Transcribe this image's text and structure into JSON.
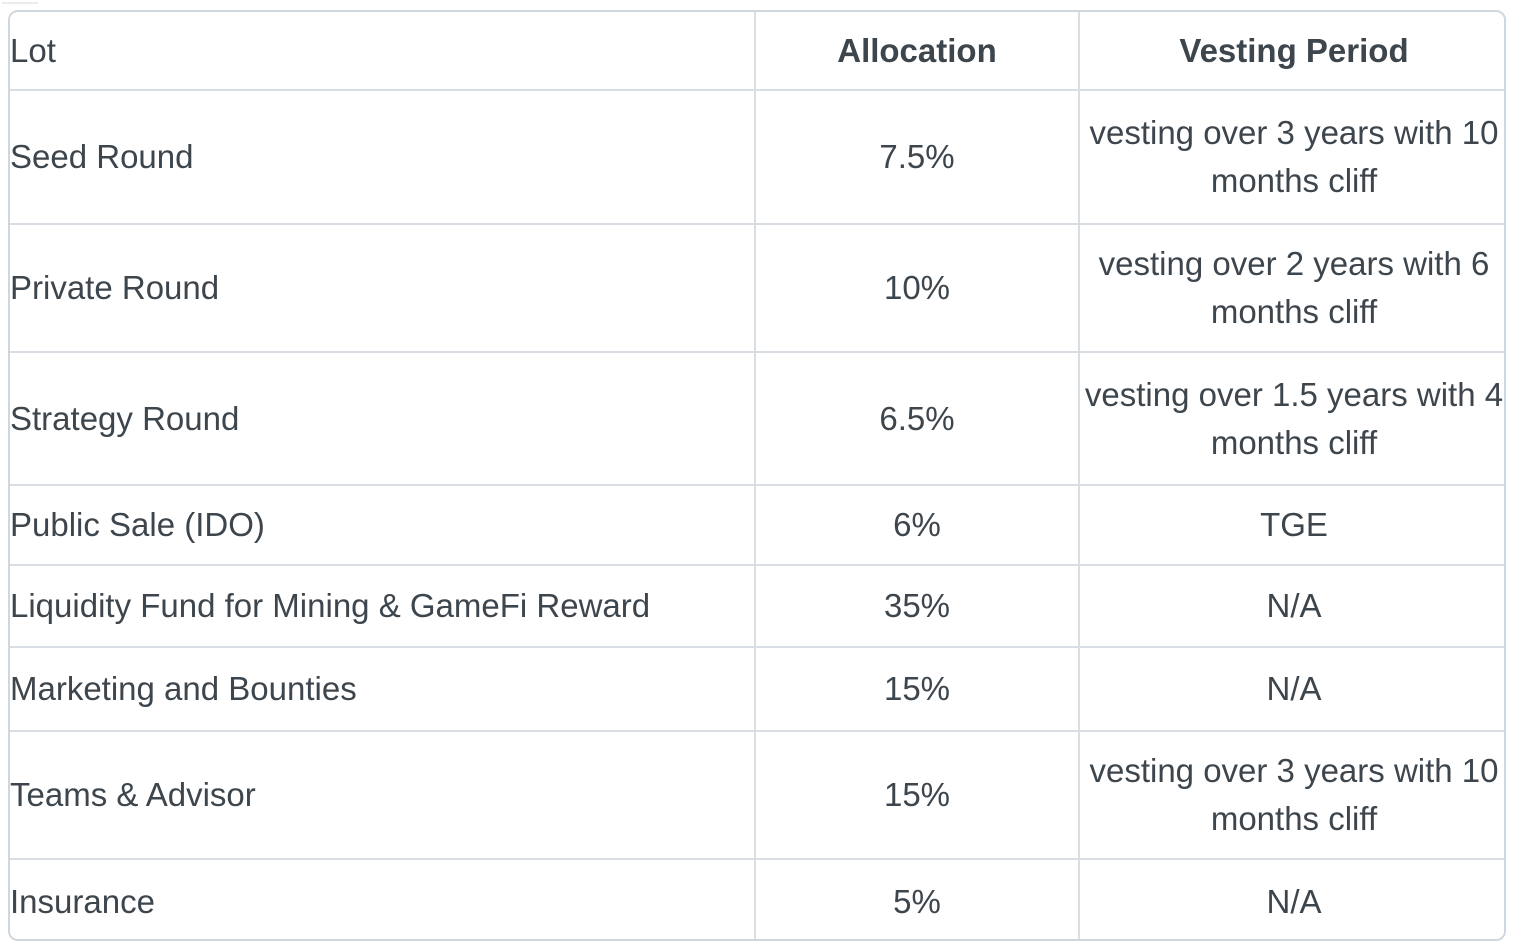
{
  "table": {
    "title_semantic": "token-allocation-vesting-table",
    "columns": [
      {
        "key": "lot",
        "label": "Lot",
        "align": "left",
        "bold": false
      },
      {
        "key": "allocation",
        "label": "Allocation",
        "align": "center",
        "bold": true
      },
      {
        "key": "vesting",
        "label": "Vesting Period",
        "align": "center",
        "bold": true
      }
    ],
    "rows": [
      {
        "lot": "Seed Round",
        "allocation": "7.5%",
        "vesting": "vesting over 3 years with 10 months cliff"
      },
      {
        "lot": "Private Round",
        "allocation": "10%",
        "vesting": "vesting over 2 years with 6 months cliff"
      },
      {
        "lot": "Strategy Round",
        "allocation": "6.5%",
        "vesting": "vesting over 1.5 years with 4 months cliff"
      },
      {
        "lot": "Public Sale (IDO)",
        "allocation": "6%",
        "vesting": "TGE"
      },
      {
        "lot": "Liquidity Fund for Mining & GameFi Reward",
        "allocation": "35%",
        "vesting": "N/A"
      },
      {
        "lot": "Marketing and Bounties",
        "allocation": "15%",
        "vesting": "N/A"
      },
      {
        "lot": "Teams & Advisor",
        "allocation": "15%",
        "vesting": "vesting over 3 years with 10 months cliff"
      },
      {
        "lot": "Insurance",
        "allocation": "5%",
        "vesting": "N/A"
      }
    ]
  },
  "colors": {
    "text": "#3d454d",
    "border_inner": "#d9dee4",
    "border_outer": "#cfd7de",
    "background": "#ffffff"
  }
}
